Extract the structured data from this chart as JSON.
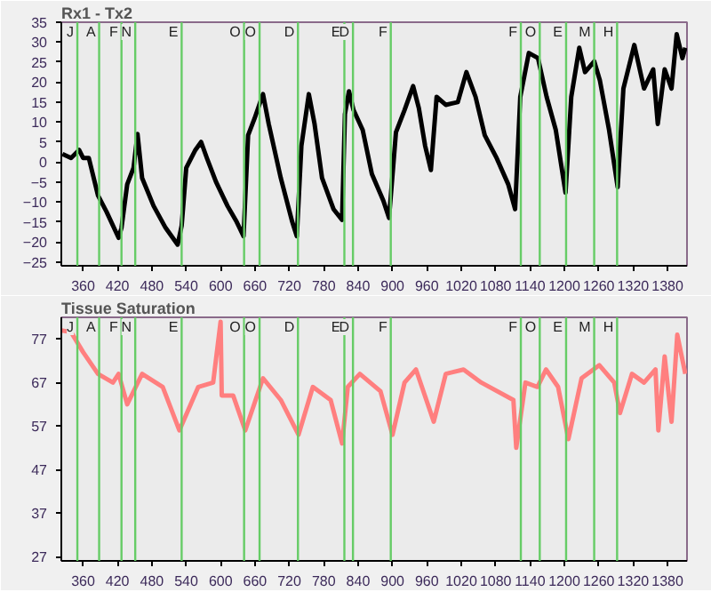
{
  "chart_data": [
    {
      "type": "line",
      "title": "Rx1 - Tx2",
      "xlim": [
        322,
        1414
      ],
      "xticks": [
        360,
        420,
        480,
        540,
        600,
        660,
        720,
        780,
        840,
        900,
        960,
        1020,
        1080,
        1140,
        1200,
        1260,
        1320,
        1380
      ],
      "ylim": [
        -26,
        35
      ],
      "yticks": [
        -25,
        -20,
        -15,
        -10,
        -5,
        0,
        5,
        10,
        15,
        20,
        25,
        30,
        35
      ],
      "grid": false,
      "x": [
        324,
        339,
        353,
        360,
        370,
        386,
        401,
        422,
        427,
        437,
        448,
        455,
        463,
        483,
        504,
        525,
        532,
        540,
        556,
        566,
        576,
        592,
        612,
        628,
        640,
        648,
        659,
        674,
        684,
        705,
        725,
        733,
        741,
        754,
        764,
        777,
        797,
        812,
        817,
        824,
        832,
        848,
        864,
        884,
        894,
        906,
        921,
        936,
        946,
        957,
        967,
        977,
        993,
        1014,
        1029,
        1045,
        1061,
        1081,
        1102,
        1114,
        1123,
        1138,
        1154,
        1169,
        1185,
        1202,
        1212,
        1226,
        1236,
        1252,
        1262,
        1278,
        1293,
        1303,
        1322,
        1339,
        1355,
        1363,
        1375,
        1387,
        1396,
        1406,
        1411
      ],
      "series": [
        {
          "color": "#000000",
          "values": [
            2,
            1,
            3,
            1,
            1,
            -8.4,
            -12.5,
            -19,
            -16.5,
            -5.6,
            -1.5,
            7,
            -4,
            -11,
            -16.5,
            -20.7,
            -16,
            -1.5,
            3,
            5,
            1,
            -5,
            -11,
            -15,
            -18.6,
            6.7,
            10.8,
            17,
            9.5,
            -4,
            -15,
            -18.6,
            4,
            17,
            9.5,
            -4,
            -11.8,
            -14.5,
            12,
            17.7,
            13,
            8,
            -3,
            -9.7,
            -14,
            7.4,
            13,
            19,
            13.5,
            4,
            -2,
            16.3,
            14.3,
            15,
            22.5,
            16.3,
            6.7,
            1.2,
            -5.6,
            -11.8,
            16.3,
            27.3,
            26,
            16.3,
            8,
            -7.7,
            16.3,
            28.6,
            22.5,
            25.2,
            20.4,
            8,
            -6.3,
            18.4,
            29.3,
            18.4,
            23.2,
            9.5,
            23.2,
            18.4,
            32,
            26,
            28.6
          ]
        }
      ],
      "ref_lines": [
        {
          "axis": "x",
          "value": 350,
          "label": "J",
          "color": "#66cc66"
        },
        {
          "axis": "x",
          "value": 388,
          "label": "A",
          "color": "#66cc66"
        },
        {
          "axis": "x",
          "value": 427,
          "label": "F",
          "color": "#66cc66"
        },
        {
          "axis": "x",
          "value": 451,
          "label": "N",
          "color": "#66cc66"
        },
        {
          "axis": "x",
          "value": 532,
          "label": "E",
          "color": "#66cc66"
        },
        {
          "axis": "x",
          "value": 641,
          "label": "O",
          "color": "#66cc66"
        },
        {
          "axis": "x",
          "value": 668,
          "label": "O",
          "color": "#66cc66"
        },
        {
          "axis": "x",
          "value": 735,
          "label": "D",
          "color": "#66cc66"
        },
        {
          "axis": "x",
          "value": 816,
          "label": "E",
          "color": "#66cc66"
        },
        {
          "axis": "x",
          "value": 831,
          "label": "D",
          "color": "#66cc66"
        },
        {
          "axis": "x",
          "value": 897,
          "label": "F",
          "color": "#66cc66"
        },
        {
          "axis": "x",
          "value": 1124,
          "label": "F",
          "color": "#66cc66"
        },
        {
          "axis": "x",
          "value": 1157,
          "label": "O",
          "color": "#66cc66"
        },
        {
          "axis": "x",
          "value": 1203,
          "label": "E",
          "color": "#66cc66"
        },
        {
          "axis": "x",
          "value": 1252,
          "label": "M",
          "color": "#66cc66"
        },
        {
          "axis": "x",
          "value": 1292,
          "label": "H",
          "color": "#66cc66"
        }
      ]
    },
    {
      "type": "line",
      "title": "Tissue Saturation",
      "xlim": [
        322,
        1414
      ],
      "xticks": [
        360,
        420,
        480,
        540,
        600,
        660,
        720,
        780,
        840,
        900,
        960,
        1020,
        1080,
        1140,
        1200,
        1260,
        1320,
        1380
      ],
      "ylim": [
        26,
        82
      ],
      "yticks": [
        27,
        37,
        47,
        57,
        67,
        77
      ],
      "grid": false,
      "x": [
        322,
        339,
        360,
        386,
        412,
        422,
        437,
        463,
        499,
        528,
        561,
        587,
        600,
        602,
        622,
        643,
        674,
        705,
        736,
        761,
        792,
        812,
        822,
        843,
        879,
        900,
        921,
        941,
        972,
        993,
        1024,
        1055,
        1111,
        1116,
        1132,
        1153,
        1168,
        1189,
        1207,
        1230,
        1261,
        1287,
        1297,
        1318,
        1339,
        1359,
        1364,
        1375,
        1387,
        1397,
        1411
      ],
      "series": [
        {
          "color": "#ff7f7f",
          "values": [
            79,
            78.6,
            74,
            69,
            67,
            69,
            62,
            69,
            66,
            56,
            66,
            67,
            81,
            64,
            64,
            56,
            68,
            63,
            55,
            66,
            63,
            53,
            66,
            69,
            65,
            55,
            67,
            70,
            58,
            69,
            70,
            67,
            63,
            52,
            67,
            66,
            70,
            66,
            54,
            68,
            71,
            67,
            60,
            69,
            67,
            70,
            56,
            73,
            58,
            78,
            69
          ]
        }
      ],
      "ref_lines": [
        {
          "axis": "x",
          "value": 350,
          "label": "J",
          "color": "#66cc66"
        },
        {
          "axis": "x",
          "value": 388,
          "label": "A",
          "color": "#66cc66"
        },
        {
          "axis": "x",
          "value": 427,
          "label": "F",
          "color": "#66cc66"
        },
        {
          "axis": "x",
          "value": 451,
          "label": "N",
          "color": "#66cc66"
        },
        {
          "axis": "x",
          "value": 532,
          "label": "E",
          "color": "#66cc66"
        },
        {
          "axis": "x",
          "value": 641,
          "label": "O",
          "color": "#66cc66"
        },
        {
          "axis": "x",
          "value": 668,
          "label": "O",
          "color": "#66cc66"
        },
        {
          "axis": "x",
          "value": 735,
          "label": "D",
          "color": "#66cc66"
        },
        {
          "axis": "x",
          "value": 816,
          "label": "E",
          "color": "#66cc66"
        },
        {
          "axis": "x",
          "value": 831,
          "label": "D",
          "color": "#66cc66"
        },
        {
          "axis": "x",
          "value": 897,
          "label": "F",
          "color": "#66cc66"
        },
        {
          "axis": "x",
          "value": 1124,
          "label": "F",
          "color": "#66cc66"
        },
        {
          "axis": "x",
          "value": 1157,
          "label": "O",
          "color": "#66cc66"
        },
        {
          "axis": "x",
          "value": 1203,
          "label": "E",
          "color": "#66cc66"
        },
        {
          "axis": "x",
          "value": 1252,
          "label": "M",
          "color": "#66cc66"
        },
        {
          "axis": "x",
          "value": 1292,
          "label": "H",
          "color": "#66cc66"
        }
      ]
    }
  ]
}
